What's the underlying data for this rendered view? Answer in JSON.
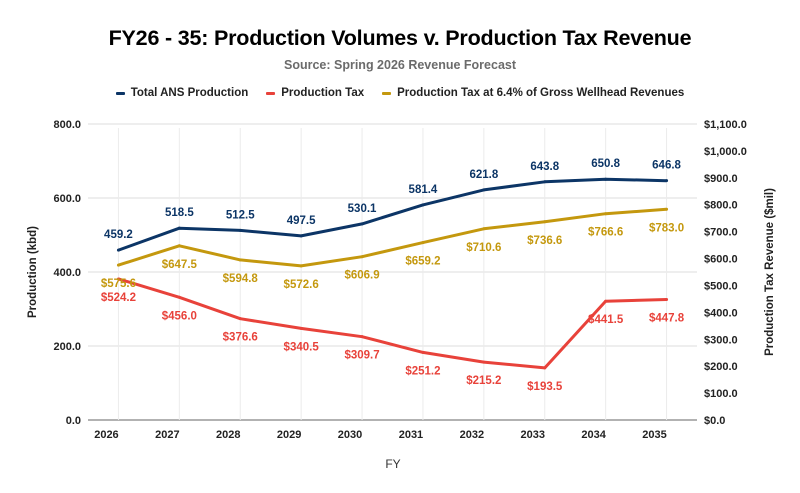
{
  "chart_data": {
    "type": "line",
    "title": "FY26 - 35: Production Volumes v. Production Tax Revenue",
    "subtitle": "Source: Spring 2026 Revenue Forecast",
    "xlabel": "FY",
    "ylabel_left": "Production (kbd)",
    "ylabel_right": "Production Tax Revenue ($mil)",
    "categories": [
      "2026",
      "2027",
      "2028",
      "2029",
      "2030",
      "2031",
      "2032",
      "2033",
      "2034",
      "2035"
    ],
    "left_axis": {
      "range": [
        0,
        800
      ],
      "ticks": [
        0,
        200,
        400,
        600,
        800
      ],
      "tick_labels": [
        "0.0",
        "200.0",
        "400.0",
        "600.0",
        "800.0"
      ]
    },
    "right_axis": {
      "range": [
        0,
        1100
      ],
      "ticks": [
        0,
        100,
        200,
        300,
        400,
        500,
        600,
        700,
        800,
        900,
        1000,
        1100
      ],
      "tick_labels": [
        "$0.0",
        "$100.0",
        "$200.0",
        "$300.0",
        "$400.0",
        "$500.0",
        "$600.0",
        "$700.0",
        "$800.0",
        "$900.0",
        "$1,000.0",
        "$1,100.0"
      ]
    },
    "grid": true,
    "legend_position": "top",
    "series": [
      {
        "name": "Total ANS Production",
        "axis": "left",
        "color": "#0c3566",
        "values": [
          459.2,
          518.5,
          512.5,
          497.5,
          530.1,
          581.4,
          621.8,
          643.8,
          650.8,
          646.8
        ],
        "labels": [
          "459.2",
          "518.5",
          "512.5",
          "497.5",
          "530.1",
          "581.4",
          "621.8",
          "643.8",
          "650.8",
          "646.8"
        ],
        "label_position": "above"
      },
      {
        "name": "Production Tax",
        "axis": "right",
        "color": "#e8423a",
        "values": [
          524.2,
          456.0,
          376.6,
          340.5,
          309.7,
          251.2,
          215.2,
          193.5,
          441.5,
          447.8
        ],
        "labels": [
          "$524.2",
          "$456.0",
          "$376.6",
          "$340.5",
          "$309.7",
          "$251.2",
          "$215.2",
          "$193.5",
          "$441.5",
          "$447.8"
        ],
        "label_position": "below"
      },
      {
        "name": "Production Tax at 6.4% of Gross Wellhead Revenues",
        "axis": "right",
        "color": "#c4980e",
        "values": [
          575.6,
          647.5,
          594.8,
          572.6,
          606.9,
          659.2,
          710.6,
          736.6,
          766.6,
          783.0
        ],
        "labels": [
          "$575.6",
          "$647.5",
          "$594.8",
          "$572.6",
          "$606.9",
          "$659.2",
          "$710.6",
          "$736.6",
          "$766.6",
          "$783.0"
        ],
        "label_position": "below"
      }
    ]
  }
}
